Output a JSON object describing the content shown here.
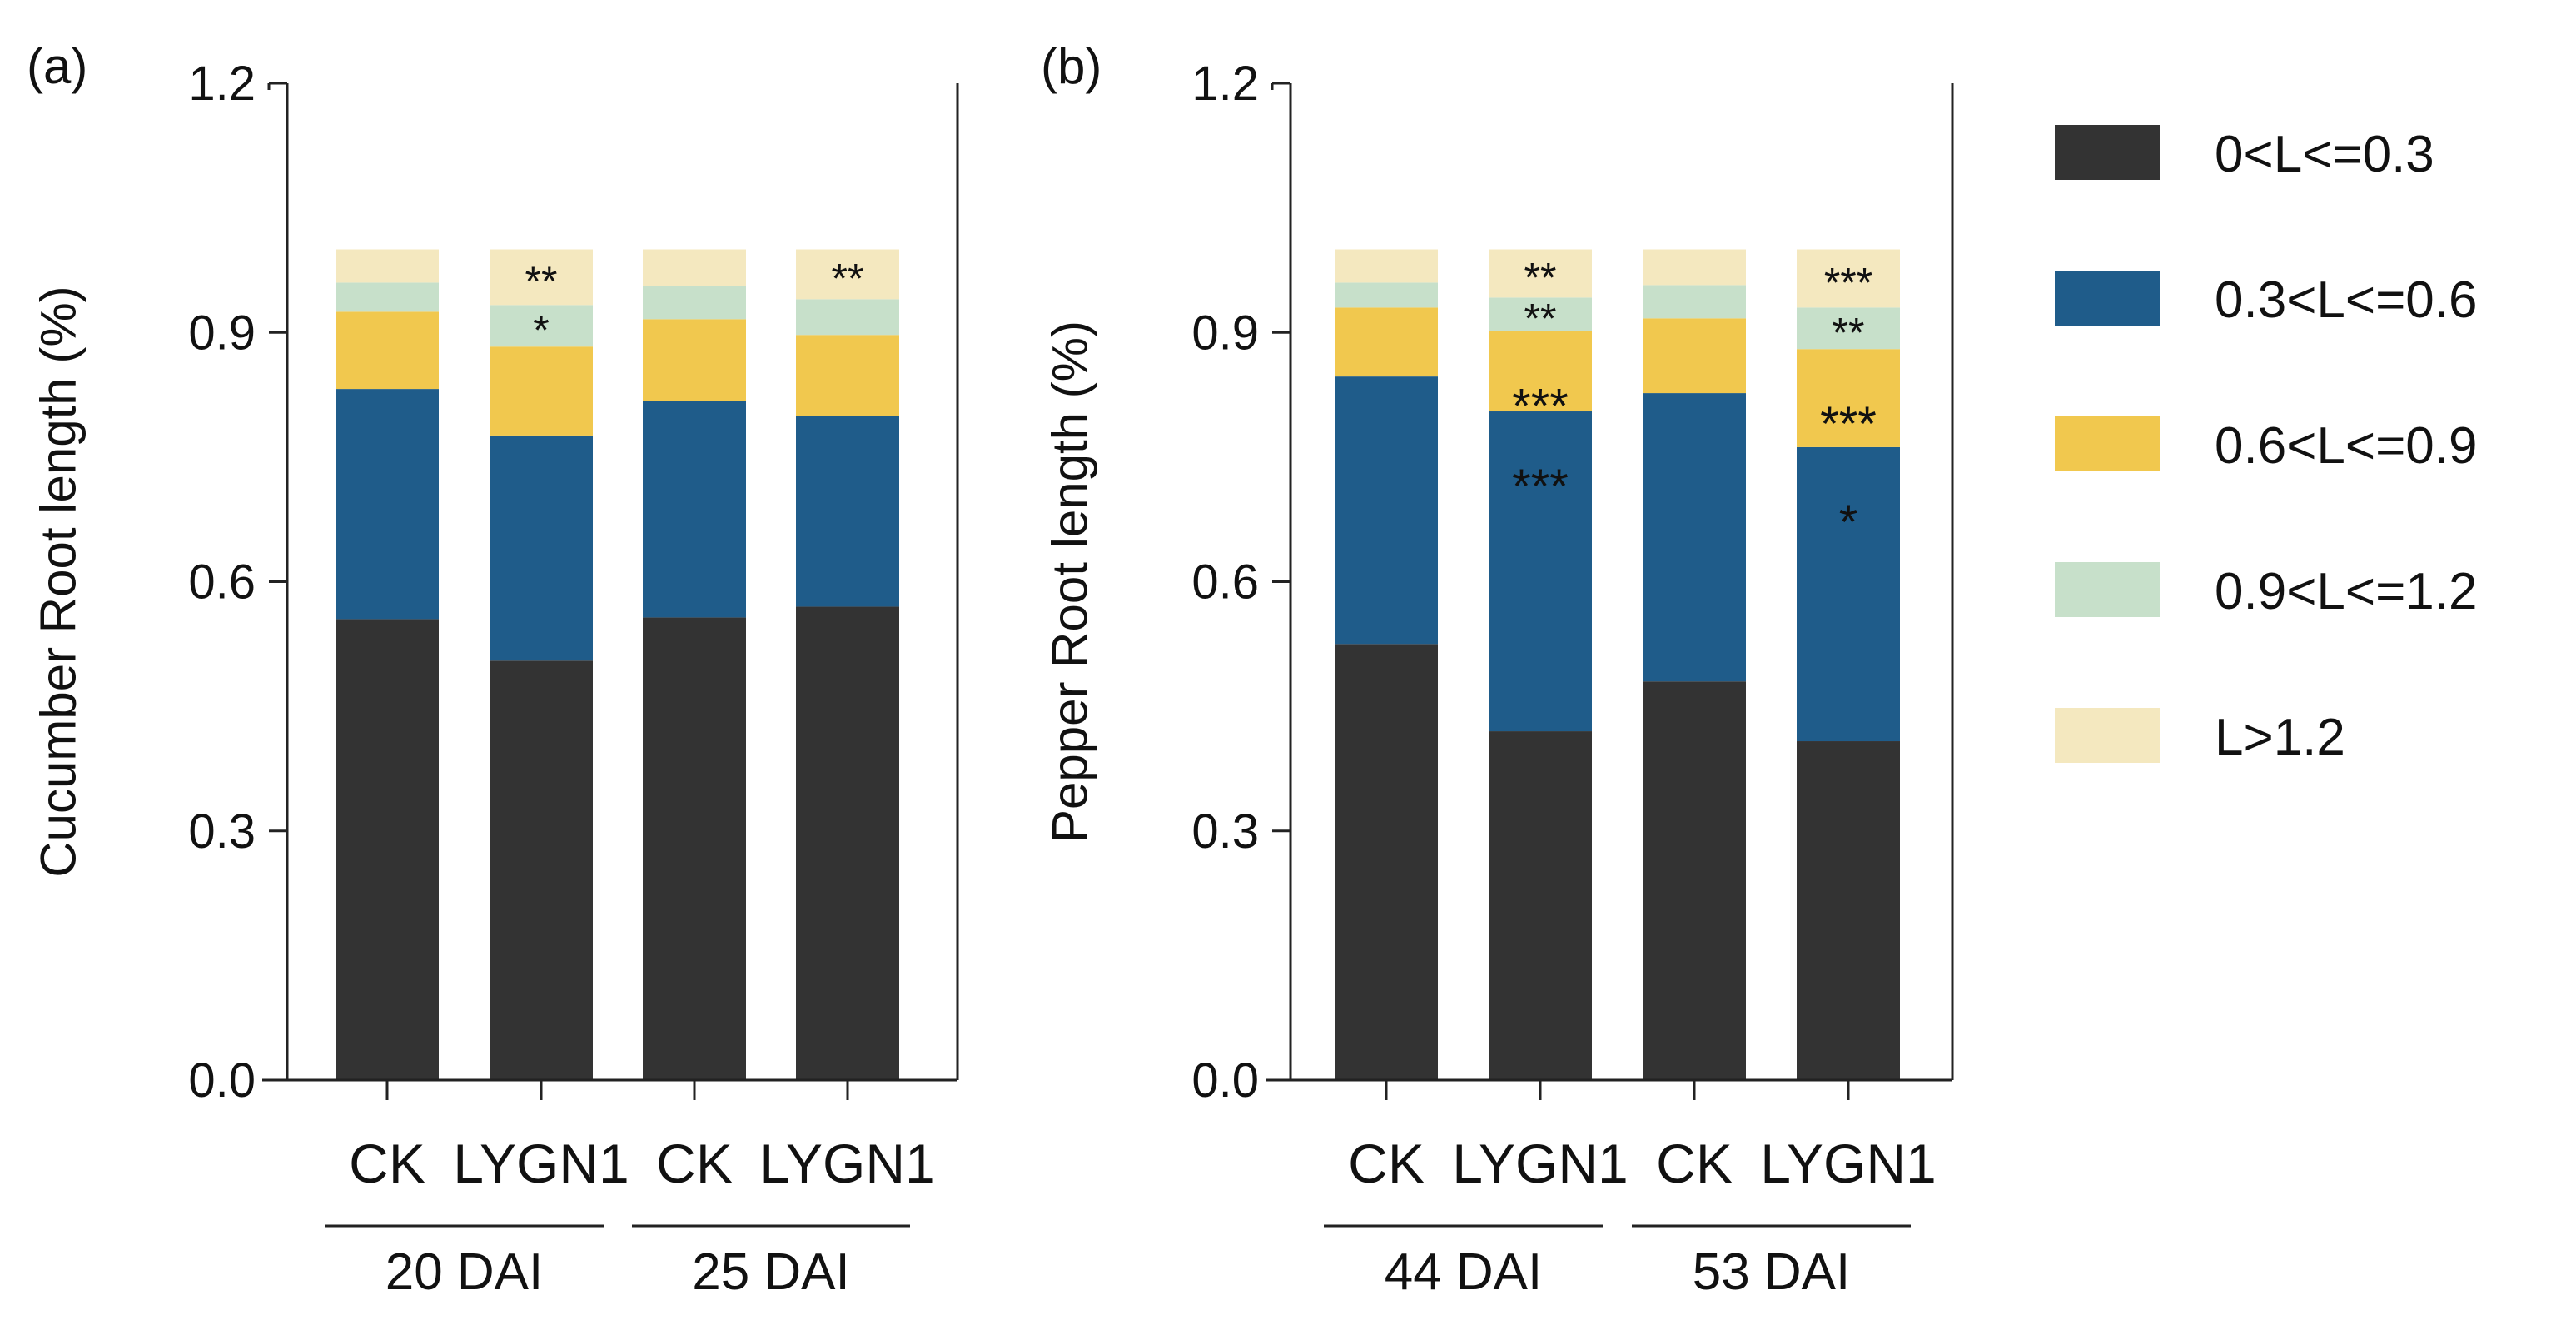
{
  "legend": {
    "placement": "right",
    "items": [
      {
        "label": "0<L<=0.3",
        "color": "#333333"
      },
      {
        "label": "0.3<L<=0.6",
        "color": "#1F5C8A"
      },
      {
        "label": "0.6<L<=0.9",
        "color": "#F1C84E"
      },
      {
        "label": "0.9<L<=1.2",
        "color": "#C7E0CA"
      },
      {
        "label": "L>1.2",
        "color": "#F4E8BF"
      }
    ]
  },
  "chart_data": [
    {
      "type": "bar",
      "stacked": true,
      "panel_label": "(a)",
      "ylabel": "Cucumber Root length (%)",
      "ylim": [
        0,
        1.2
      ],
      "yticks": [
        "0.0",
        "0.3",
        "0.6",
        "0.9",
        "1.2"
      ],
      "grid": false,
      "categories": [
        "CK",
        "LYGN1",
        "CK",
        "LYGN1"
      ],
      "groups": [
        {
          "label": "20 DAI",
          "categories": [
            0,
            1
          ]
        },
        {
          "label": "25 DAI",
          "categories": [
            2,
            3
          ]
        }
      ],
      "series": [
        {
          "name": "0<L<=0.3",
          "values": [
            0.555,
            0.505,
            0.557,
            0.57
          ],
          "annotations": [
            "",
            "",
            "",
            ""
          ]
        },
        {
          "name": "0.3<L<=0.6",
          "values": [
            0.277,
            0.271,
            0.261,
            0.23
          ],
          "annotations": [
            "",
            "",
            "",
            ""
          ]
        },
        {
          "name": "0.6<L<=0.9",
          "values": [
            0.093,
            0.107,
            0.098,
            0.097
          ],
          "annotations": [
            "",
            "",
            "",
            ""
          ]
        },
        {
          "name": "0.9<L<=1.2",
          "values": [
            0.035,
            0.05,
            0.04,
            0.043
          ],
          "annotations": [
            "",
            "*",
            "",
            ""
          ]
        },
        {
          "name": "L>1.2",
          "values": [
            0.04,
            0.067,
            0.044,
            0.06
          ],
          "annotations": [
            "",
            "**",
            "",
            "**"
          ]
        }
      ]
    },
    {
      "type": "bar",
      "stacked": true,
      "panel_label": "(b)",
      "ylabel": "Pepper Root length (%)",
      "ylim": [
        0,
        1.2
      ],
      "yticks": [
        "0.0",
        "0.3",
        "0.6",
        "0.9",
        "1.2"
      ],
      "grid": false,
      "categories": [
        "CK",
        "LYGN1",
        "CK",
        "LYGN1"
      ],
      "groups": [
        {
          "label": "44 DAI",
          "categories": [
            0,
            1
          ]
        },
        {
          "label": "53 DAI",
          "categories": [
            2,
            3
          ]
        }
      ],
      "series": [
        {
          "name": "0<L<=0.3",
          "values": [
            0.525,
            0.42,
            0.48,
            0.408
          ],
          "annotations": [
            "",
            "",
            "",
            ""
          ]
        },
        {
          "name": "0.3<L<=0.6",
          "values": [
            0.322,
            0.385,
            0.347,
            0.354
          ],
          "annotations": [
            "",
            "***",
            "",
            "*"
          ]
        },
        {
          "name": "0.6<L<=0.9",
          "values": [
            0.083,
            0.097,
            0.09,
            0.118
          ],
          "annotations": [
            "",
            "***",
            "",
            "***"
          ]
        },
        {
          "name": "0.9<L<=1.2",
          "values": [
            0.03,
            0.04,
            0.04,
            0.05
          ],
          "annotations": [
            "",
            "**",
            "",
            "**"
          ]
        },
        {
          "name": "L>1.2",
          "values": [
            0.04,
            0.058,
            0.043,
            0.07
          ],
          "annotations": [
            "",
            "**",
            "",
            "***"
          ]
        }
      ]
    }
  ]
}
